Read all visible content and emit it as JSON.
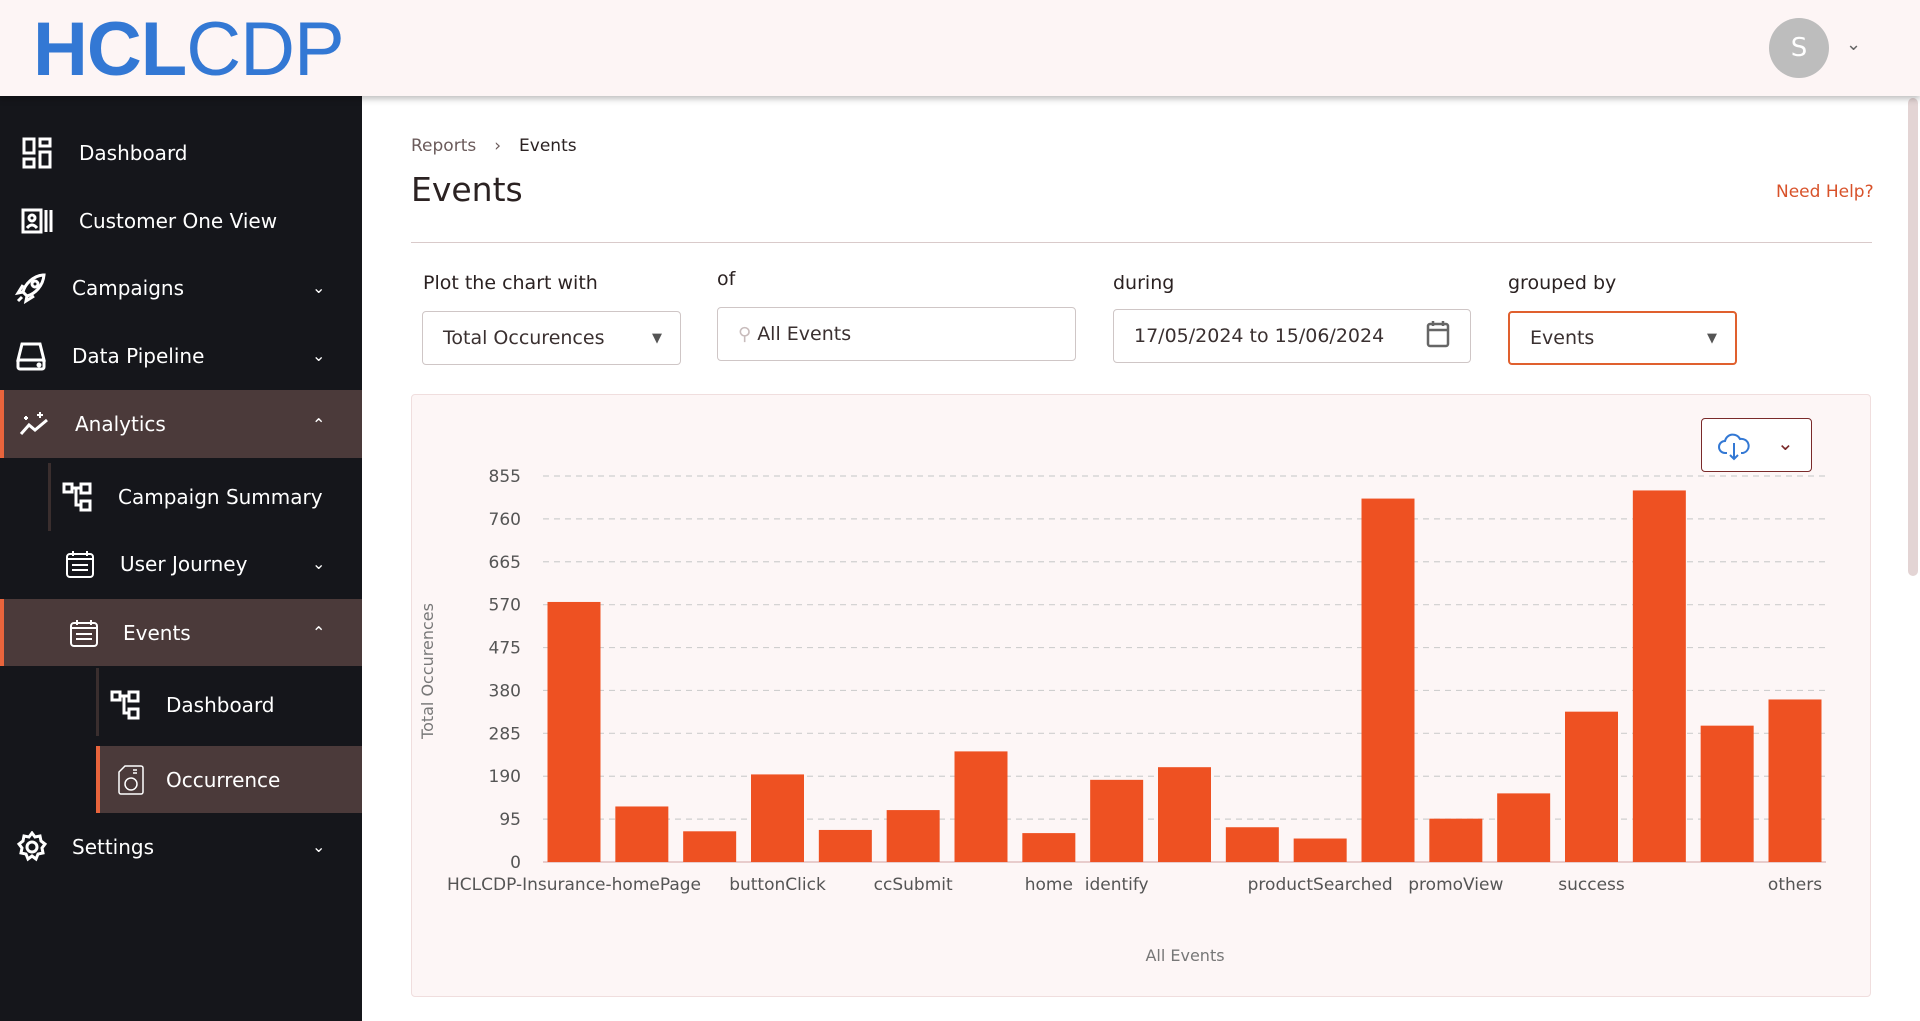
{
  "header": {
    "logo_bold": "HCL",
    "logo_light": "CDP",
    "avatar_initial": "S"
  },
  "sidebar": {
    "items": [
      {
        "label": "Dashboard",
        "icon": "dashboard-grid-icon"
      },
      {
        "label": "Customer One View",
        "icon": "contact-card-icon"
      },
      {
        "label": "Campaigns",
        "icon": "rocket-icon"
      },
      {
        "label": "Data Pipeline",
        "icon": "drive-icon"
      },
      {
        "label": "Analytics",
        "icon": "analytics-icon"
      },
      {
        "label": "Campaign Summary",
        "icon": "hierarchy-icon"
      },
      {
        "label": "User Journey",
        "icon": "calendar-icon"
      },
      {
        "label": "Events",
        "icon": "calendar-icon"
      },
      {
        "label": "Dashboard",
        "icon": "hierarchy-icon"
      },
      {
        "label": "Occurrence",
        "icon": "occurrence-icon"
      },
      {
        "label": "Settings",
        "icon": "gear-icon"
      }
    ]
  },
  "breadcrumb": {
    "parent": "Reports",
    "current": "Events"
  },
  "page": {
    "title": "Events",
    "help": "Need Help?"
  },
  "filters": {
    "plot_label": "Plot the chart with",
    "plot_value": "Total Occurences",
    "of_label": "of",
    "of_value": "All Events",
    "during_label": "during",
    "during_value": "17/05/2024 to 15/06/2024",
    "group_label": "grouped by",
    "group_value": "Events"
  },
  "colors": {
    "bar": "#ee5122",
    "accent": "#e8643c",
    "logo": "#3378d4"
  },
  "chart_data": {
    "type": "bar",
    "title": "",
    "xlabel": "All Events",
    "ylabel": "Total Occurences",
    "ylim": [
      0,
      855
    ],
    "yticks": [
      "0",
      "95",
      "190",
      "285",
      "380",
      "475",
      "570",
      "665",
      "760",
      "855"
    ],
    "grid": true,
    "categories": [
      "HCLCDP-Insurance-homePage",
      "",
      "",
      "buttonClick",
      "",
      "ccSubmit",
      "",
      "home",
      "identify",
      "",
      "",
      "productSearched",
      "",
      "promoView",
      "",
      "success",
      "",
      "",
      "others"
    ],
    "values": [
      576,
      123,
      68,
      194,
      71,
      115,
      245,
      64,
      182,
      210,
      77,
      52,
      805,
      96,
      152,
      333,
      823,
      302,
      360
    ]
  }
}
